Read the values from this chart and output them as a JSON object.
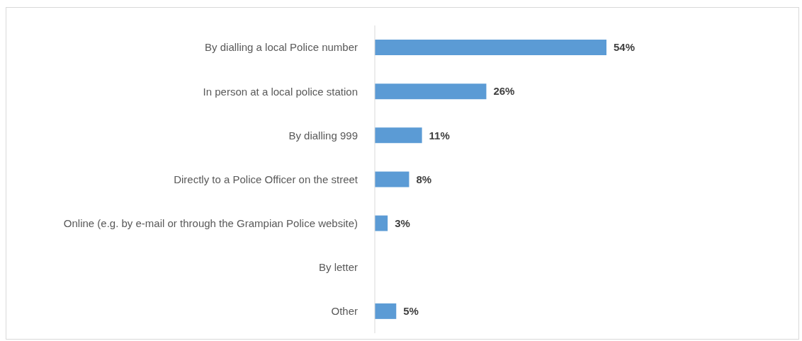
{
  "chart_data": {
    "type": "bar",
    "orientation": "horizontal",
    "categories": [
      "By dialling a local Police number",
      "In person at a local police station",
      "By dialling 999",
      "Directly to a Police Officer on the street",
      "Online (e.g. by e-mail or through the Grampian Police website)",
      "By letter",
      "Other"
    ],
    "values": [
      54,
      26,
      11,
      8,
      3,
      null,
      5
    ],
    "value_labels": [
      "54%",
      "26%",
      "11%",
      "8%",
      "3%",
      null,
      "5%"
    ],
    "color": "#5b9bd5"
  }
}
